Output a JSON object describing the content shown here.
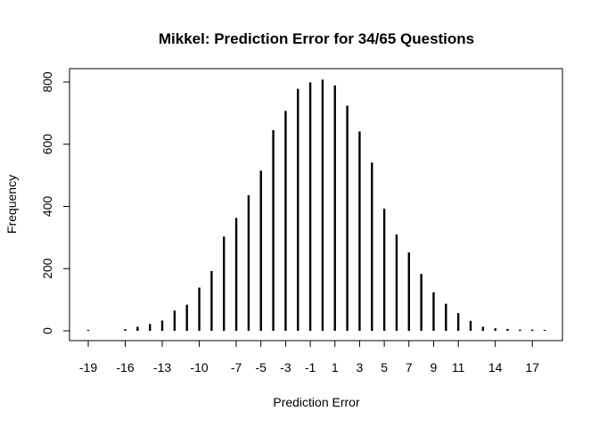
{
  "chart_data": {
    "type": "bar",
    "style": "histogram-spikes",
    "title": "Mikkel: Prediction Error for 34/65 Questions",
    "xlabel": "Prediction Error",
    "ylabel": "Frequency",
    "xlim": [
      -19,
      18
    ],
    "ylim": [
      0,
      805
    ],
    "x_ticks": [
      -19,
      -16,
      -13,
      -10,
      -7,
      -5,
      -3,
      -1,
      1,
      3,
      5,
      7,
      9,
      11,
      14,
      17
    ],
    "y_ticks": [
      0,
      200,
      400,
      600,
      800
    ],
    "x": [
      -19,
      -16,
      -15,
      -14,
      -13,
      -12,
      -11,
      -10,
      -9,
      -8,
      -7,
      -6,
      -5,
      -4,
      -3,
      -2,
      -1,
      0,
      1,
      2,
      3,
      4,
      5,
      6,
      7,
      8,
      9,
      10,
      11,
      12,
      13,
      14,
      15,
      16,
      17,
      18
    ],
    "values": [
      3,
      5,
      13,
      22,
      33,
      65,
      84,
      139,
      192,
      303,
      363,
      436,
      515,
      645,
      707,
      778,
      799,
      808,
      789,
      724,
      641,
      541,
      393,
      310,
      252,
      183,
      124,
      87,
      57,
      32,
      13,
      8,
      6,
      4,
      4,
      3
    ],
    "grid": false,
    "legend": "none"
  }
}
